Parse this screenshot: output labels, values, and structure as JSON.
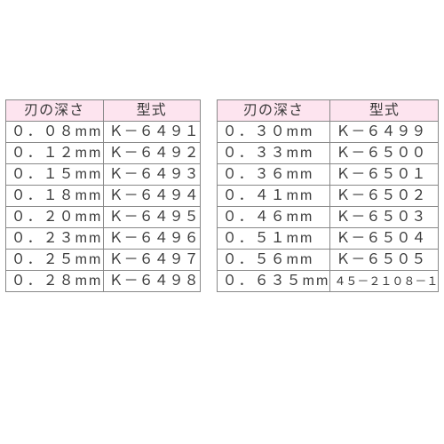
{
  "colors": {
    "header_bg": "#fde4ef",
    "border": "#888888",
    "text": "#3a3a3a",
    "page_bg": "#ffffff"
  },
  "left_table": {
    "headers": {
      "depth": "刃の深さ",
      "model": "型式"
    },
    "rows": [
      {
        "depth": "０．０８mm",
        "model": "Ｋ－６４９１"
      },
      {
        "depth": "０．１２mm",
        "model": "Ｋ－６４９２"
      },
      {
        "depth": "０．１５mm",
        "model": "Ｋ－６４９３"
      },
      {
        "depth": "０．１８mm",
        "model": "Ｋ－６４９４"
      },
      {
        "depth": "０．２０mm",
        "model": "Ｋ－６４９５"
      },
      {
        "depth": "０．２３mm",
        "model": "Ｋ－６４９６"
      },
      {
        "depth": "０．２５mm",
        "model": "Ｋ－６４９７"
      },
      {
        "depth": "０．２８mm",
        "model": "Ｋ－６４９８"
      }
    ]
  },
  "right_table": {
    "headers": {
      "depth": "刃の深さ",
      "model": "型式"
    },
    "rows": [
      {
        "depth": "０．３０mm",
        "model": "Ｋ－６４９９"
      },
      {
        "depth": "０．３３mm",
        "model": "Ｋ－６５００"
      },
      {
        "depth": "０．３６mm",
        "model": "Ｋ－６５０１"
      },
      {
        "depth": "０．４１mm",
        "model": "Ｋ－６５０２"
      },
      {
        "depth": "０．４６mm",
        "model": "Ｋ－６５０３"
      },
      {
        "depth": "０．５１mm",
        "model": "Ｋ－６５０４"
      },
      {
        "depth": "０．５６mm",
        "model": "Ｋ－６５０５"
      },
      {
        "depth": "０．６３５mm",
        "model": "４５－２１０８－１",
        "model_small": true
      }
    ]
  }
}
